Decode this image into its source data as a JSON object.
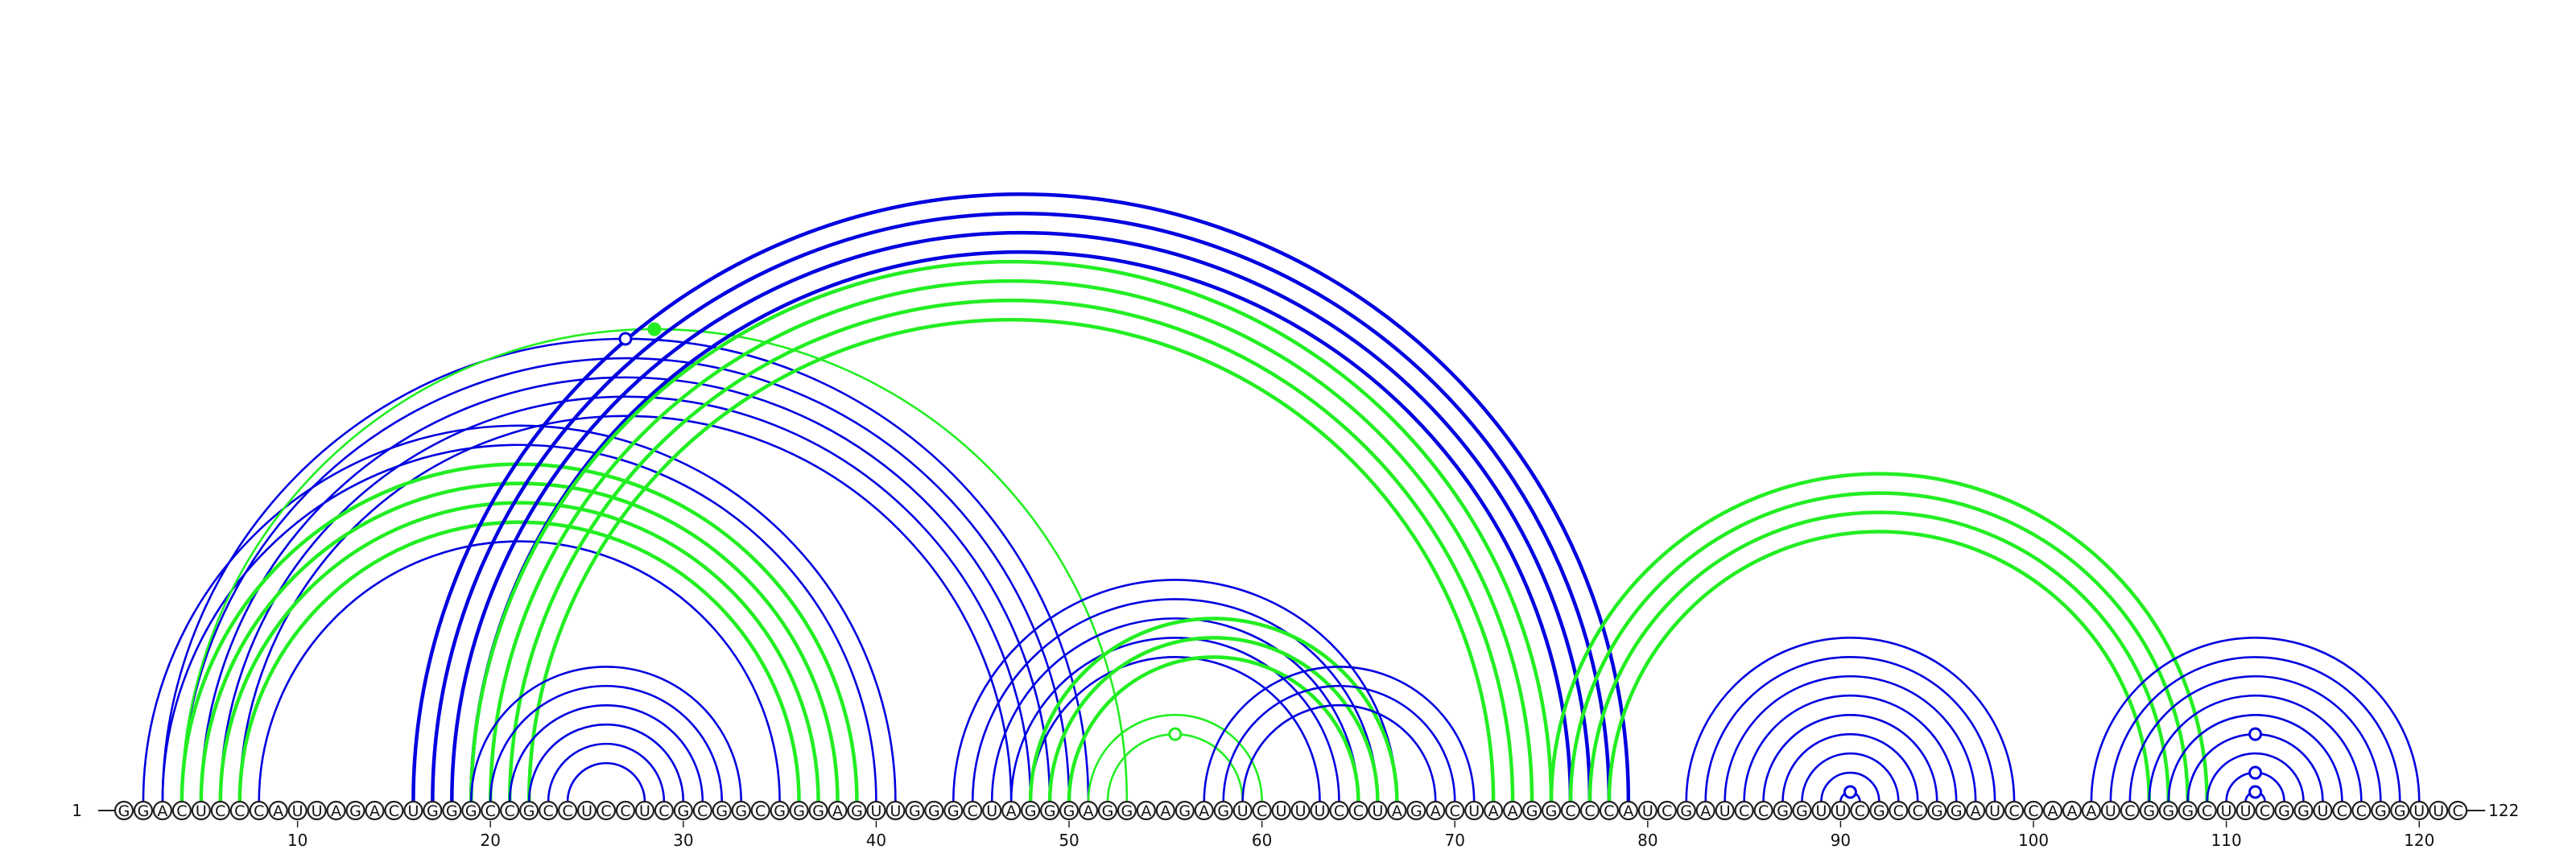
{
  "sequence": "GGACUCCCAUUAGACUGGGCCGCCUCCUCGCGGCGGGAGUUGGGCUAGGGAGGAAGAGUCUUUCCUAGACUAAGGCCCAUCGAUCCGGUUCGCCGGAUCCAAAUCGGGCUUCGGUCCGGUUC",
  "start_label": "1",
  "end_label": "122",
  "tick_labels": [
    "10",
    "20",
    "30",
    "40",
    "50",
    "60",
    "70",
    "80",
    "90",
    "100",
    "110",
    "120"
  ],
  "colors": {
    "blue": "#0000e0",
    "green": "#22ee22",
    "nucleotide_stroke": "#222222"
  },
  "arc_groups": [
    {
      "color": "blue",
      "thick": false,
      "pairs": [
        [
          2,
          41
        ],
        [
          3,
          40
        ],
        [
          4,
          39
        ],
        [
          5,
          38
        ],
        [
          6,
          37
        ],
        [
          7,
          36
        ],
        [
          8,
          35
        ]
      ]
    },
    {
      "color": "blue",
      "thick": false,
      "pairs": [
        [
          3,
          51
        ],
        [
          4,
          50
        ],
        [
          5,
          49
        ],
        [
          6,
          48
        ],
        [
          7,
          47
        ]
      ]
    },
    {
      "color": "green",
      "thick": true,
      "pairs": [
        [
          4,
          39
        ],
        [
          5,
          38
        ],
        [
          6,
          37
        ],
        [
          7,
          36
        ]
      ]
    },
    {
      "color": "green",
      "thick": false,
      "pairs": [
        [
          4,
          53
        ]
      ]
    },
    {
      "color": "blue",
      "thick": true,
      "pairs": [
        [
          16,
          79
        ],
        [
          17,
          78
        ],
        [
          18,
          77
        ],
        [
          19,
          76
        ]
      ]
    },
    {
      "color": "green",
      "thick": true,
      "pairs": [
        [
          19,
          75
        ],
        [
          20,
          74
        ],
        [
          21,
          73
        ],
        [
          22,
          72
        ]
      ]
    },
    {
      "color": "blue",
      "thick": false,
      "pairs": [
        [
          19,
          33
        ],
        [
          20,
          32
        ],
        [
          21,
          31
        ],
        [
          22,
          30
        ],
        [
          23,
          29
        ],
        [
          24,
          28
        ]
      ]
    },
    {
      "color": "blue",
      "thick": false,
      "pairs": [
        [
          44,
          67
        ],
        [
          45,
          66
        ],
        [
          46,
          65
        ],
        [
          47,
          64
        ],
        [
          48,
          63
        ]
      ]
    },
    {
      "color": "green",
      "thick": true,
      "pairs": [
        [
          48,
          67
        ],
        [
          49,
          66
        ],
        [
          50,
          65
        ]
      ]
    },
    {
      "color": "green",
      "thick": false,
      "pairs": [
        [
          51,
          60
        ],
        [
          52,
          59
        ]
      ]
    },
    {
      "color": "blue",
      "thick": false,
      "pairs": [
        [
          57,
          71
        ],
        [
          58,
          70
        ],
        [
          59,
          69
        ]
      ]
    },
    {
      "color": "green",
      "thick": true,
      "pairs": [
        [
          75,
          109
        ],
        [
          76,
          108
        ],
        [
          77,
          107
        ],
        [
          78,
          106
        ]
      ]
    },
    {
      "color": "blue",
      "thick": false,
      "pairs": [
        [
          82,
          99
        ],
        [
          83,
          98
        ],
        [
          84,
          97
        ],
        [
          85,
          96
        ],
        [
          86,
          95
        ],
        [
          87,
          94
        ],
        [
          88,
          93
        ],
        [
          89,
          92
        ],
        [
          90,
          91
        ]
      ]
    },
    {
      "color": "blue",
      "thick": false,
      "pairs": [
        [
          103,
          120
        ],
        [
          104,
          119
        ],
        [
          105,
          118
        ],
        [
          106,
          117
        ],
        [
          107,
          116
        ],
        [
          108,
          115
        ],
        [
          109,
          114
        ],
        [
          110,
          113
        ],
        [
          111,
          112
        ]
      ]
    }
  ],
  "markers": [
    {
      "color": "blue",
      "filled": false,
      "between": [
        22,
        0
      ],
      "apex_of": [
        3,
        51
      ]
    },
    {
      "color": "green",
      "filled": true,
      "apex_of": [
        4,
        53
      ]
    },
    {
      "color": "green",
      "filled": false,
      "apex_of": [
        52,
        59
      ]
    },
    {
      "color": "blue",
      "filled": false,
      "apex_of": [
        90,
        91
      ]
    },
    {
      "color": "blue",
      "filled": false,
      "apex_of": [
        110,
        113
      ]
    },
    {
      "color": "blue",
      "filled": false,
      "apex_of": [
        108,
        115
      ]
    },
    {
      "color": "blue",
      "filled": false,
      "apex_of": [
        111,
        112
      ]
    }
  ]
}
